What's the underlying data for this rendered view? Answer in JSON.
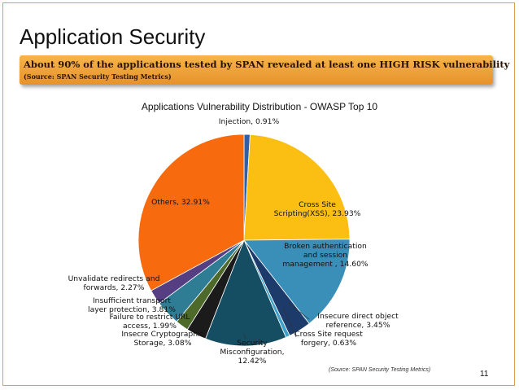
{
  "slide": {
    "title": "Application Security",
    "banner_line1": "About 90% of the applications tested by SPAN revealed at least one HIGH RISK vulnerability",
    "banner_line2": "(Source: SPAN Security Testing Metrics)",
    "source_note": "(Source: SPAN Security Testing Metrics)",
    "page_number": "11"
  },
  "chart_data": {
    "type": "pie",
    "title": "Applications Vulnerability Distribution - OWASP Top 10",
    "slices": [
      {
        "name": "Injection",
        "value": 0.91,
        "color": "#2f5fa8",
        "label_lines": [
          "Injection, 0.91%"
        ]
      },
      {
        "name": "Cross Site Scripting(XSS)",
        "value": 23.93,
        "color": "#fbbf13",
        "label_lines": [
          "Cross Site",
          "Scripting(XSS), 23.93%"
        ]
      },
      {
        "name": "Broken authentication and session management",
        "value": 14.6,
        "color": "#3a8fb8",
        "label_lines": [
          "Broken authentication",
          "and session",
          "management , 14.60%"
        ]
      },
      {
        "name": "Insecure direct object reference",
        "value": 3.45,
        "color": "#1c3a6a",
        "label_lines": [
          "Insecure direct object",
          "reference, 3.45%"
        ]
      },
      {
        "name": "Cross Site request forgery",
        "value": 0.63,
        "color": "#3fa0c8",
        "label_lines": [
          "Cross Site request",
          "forgery, 0.63%"
        ]
      },
      {
        "name": "Security Misconfiguration",
        "value": 12.42,
        "color": "#154e62",
        "label_lines": [
          "Security",
          "Misconfiguration,",
          "12.42%"
        ]
      },
      {
        "name": "Insecre Cryptographic Storage",
        "value": 3.08,
        "color": "#1b1b1b",
        "label_lines": [
          "Insecre Cryptographic",
          "Storage, 3.08%"
        ]
      },
      {
        "name": "Failure to restrict URL access",
        "value": 1.99,
        "color": "#4d6a2a",
        "label_lines": [
          "Failure to restrict URL",
          "access, 1.99%"
        ]
      },
      {
        "name": "Insufficient transport layer protection",
        "value": 3.81,
        "color": "#2e7d94",
        "label_lines": [
          "Insufficient transport",
          "layer protection, 3.81%"
        ]
      },
      {
        "name": "Unvalidate redirects and forwards",
        "value": 2.27,
        "color": "#553f82",
        "label_lines": [
          "Unvalidate redirects and",
          "forwards, 2.27%"
        ]
      },
      {
        "name": "Others",
        "value": 32.91,
        "color": "#f86a0e",
        "label_lines": [
          "Others, 32.91%"
        ]
      }
    ]
  }
}
